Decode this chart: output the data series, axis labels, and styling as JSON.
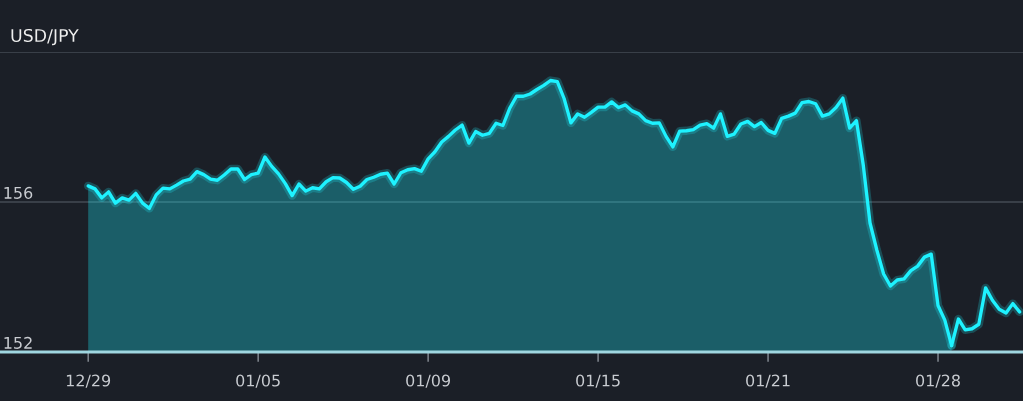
{
  "chart_data": {
    "type": "area",
    "title": "USD/JPY",
    "categories": [
      "12/29",
      null,
      null,
      null,
      null,
      null,
      null,
      null,
      null,
      null,
      null,
      null,
      null,
      null,
      null,
      null,
      null,
      null,
      null,
      null,
      null,
      null,
      null,
      null,
      null,
      "01/05",
      null,
      null,
      null,
      null,
      null,
      null,
      null,
      null,
      null,
      null,
      null,
      null,
      null,
      null,
      null,
      null,
      null,
      null,
      null,
      null,
      null,
      null,
      null,
      null,
      "01/09",
      null,
      null,
      null,
      null,
      null,
      null,
      null,
      null,
      null,
      null,
      null,
      null,
      null,
      null,
      null,
      null,
      null,
      null,
      null,
      null,
      null,
      null,
      null,
      null,
      "01/15",
      null,
      null,
      null,
      null,
      null,
      null,
      null,
      null,
      null,
      null,
      null,
      null,
      null,
      null,
      null,
      null,
      null,
      null,
      null,
      null,
      null,
      null,
      null,
      null,
      "01/21",
      null,
      null,
      null,
      null,
      null,
      null,
      null,
      null,
      null,
      null,
      null,
      null,
      null,
      null,
      null,
      null,
      null,
      null,
      null,
      null,
      null,
      null,
      null,
      null,
      "01/28",
      null,
      null,
      null,
      null,
      null,
      null,
      null,
      null,
      null,
      null,
      null,
      null
    ],
    "ylim": [
      152,
      160
    ],
    "yticks": [
      152,
      156,
      {
        "value": 160,
        "label": null
      }
    ],
    "grid": "y",
    "series": [
      {
        "color": "#1ef2ff",
        "values": [
          156.43,
          156.35,
          156.11,
          156.27,
          155.97,
          156.11,
          156.05,
          156.23,
          155.97,
          155.83,
          156.19,
          156.37,
          156.35,
          156.45,
          156.56,
          156.61,
          156.81,
          156.73,
          156.61,
          156.58,
          156.72,
          156.88,
          156.88,
          156.6,
          156.73,
          156.77,
          157.2,
          156.95,
          156.75,
          156.49,
          156.17,
          156.48,
          156.29,
          156.38,
          156.35,
          156.54,
          156.65,
          156.64,
          156.52,
          156.34,
          156.42,
          156.6,
          156.66,
          156.74,
          156.77,
          156.48,
          156.78,
          156.86,
          156.89,
          156.82,
          157.15,
          157.34,
          157.6,
          157.75,
          157.92,
          158.05,
          157.57,
          157.88,
          157.78,
          157.83,
          158.1,
          158.04,
          158.5,
          158.82,
          158.82,
          158.88,
          159.0,
          159.11,
          159.24,
          159.21,
          158.76,
          158.11,
          158.35,
          158.26,
          158.39,
          158.53,
          158.53,
          158.67,
          158.52,
          158.59,
          158.43,
          158.35,
          158.17,
          158.1,
          158.11,
          157.75,
          157.47,
          157.89,
          157.9,
          157.93,
          158.05,
          158.09,
          157.97,
          158.35,
          157.75,
          157.81,
          158.08,
          158.15,
          158.01,
          158.12,
          157.91,
          157.83,
          158.23,
          158.29,
          158.37,
          158.65,
          158.68,
          158.62,
          158.29,
          158.35,
          158.52,
          158.77,
          157.97,
          158.17,
          156.99,
          155.44,
          154.72,
          154.08,
          153.76,
          153.92,
          153.95,
          154.17,
          154.29,
          154.53,
          154.61,
          153.24,
          152.85,
          152.17,
          null,
          null,
          null,
          null,
          null,
          null,
          null,
          null,
          null,
          null
        ]
      },
      {
        "type": "line",
        "color": "#1ef2ff",
        "values": [
          null,
          null,
          null,
          null,
          null,
          null,
          null,
          null,
          null,
          null,
          null,
          null,
          null,
          null,
          null,
          null,
          null,
          null,
          null,
          null,
          null,
          null,
          null,
          null,
          null,
          null,
          null,
          null,
          null,
          null,
          null,
          null,
          null,
          null,
          null,
          null,
          null,
          null,
          null,
          null,
          null,
          null,
          null,
          null,
          null,
          null,
          null,
          null,
          null,
          null,
          null,
          null,
          null,
          null,
          null,
          null,
          null,
          null,
          null,
          null,
          null,
          null,
          null,
          null,
          null,
          null,
          null,
          null,
          null,
          null,
          null,
          null,
          null,
          null,
          null,
          null,
          null,
          null,
          null,
          null,
          null,
          null,
          null,
          null,
          null,
          null,
          null,
          null,
          null,
          null,
          null,
          null,
          null,
          null,
          null,
          null,
          null,
          null,
          null,
          null,
          null,
          null,
          null,
          null,
          null,
          null,
          null,
          null,
          null,
          null,
          null,
          null,
          null,
          null,
          null,
          null,
          null,
          null,
          null,
          null,
          null,
          null,
          null,
          null,
          null,
          null,
          null,
          152.17,
          152.88,
          152.59,
          152.62,
          152.74,
          153.71,
          153.38,
          153.14,
          153.04,
          153.29,
          153.07
        ]
      }
    ]
  }
}
